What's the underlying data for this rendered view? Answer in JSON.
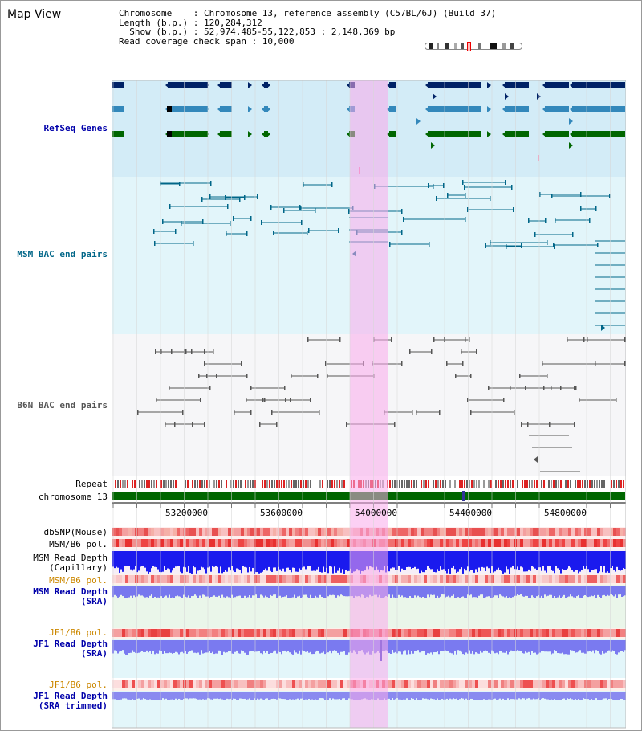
{
  "header": {
    "title": "Map View",
    "info_lines": [
      "Chromosome    : Chromosome 13, reference assembly (C57BL/6J) (Build 37)",
      "Length (b.p.) : 120,284,312",
      "  Show (b.p.) : 52,974,485-55,122,853 : 2,148,369 bp",
      "Read coverage check span : 10,000"
    ]
  },
  "tracks": {
    "refseq": {
      "label": "RefSeq Genes",
      "color": "#0000aa"
    },
    "msm_bac": {
      "label": "MSM BAC end pairs",
      "color": "#006688"
    },
    "b6n_bac": {
      "label": "B6N BAC end pairs",
      "color": "#555555"
    },
    "repeat": {
      "label": "Repeat",
      "color": "#000000"
    },
    "chromosome": {
      "label": "chromosome 13",
      "color": "#000000"
    },
    "dbsnp": {
      "label": "dbSNP(Mouse)",
      "color": "#000000"
    },
    "msm_b6_pol_1": {
      "label": "MSM/B6 pol.",
      "color": "#000000"
    },
    "msm_read_depth_cap": {
      "label1": "MSM Read Depth",
      "label2": "(Capillary)",
      "color": "#000000"
    },
    "msm_b6_pol_2": {
      "label": "MSM/B6 pol.",
      "color": "#cc8800"
    },
    "msm_read_depth_sra": {
      "label1": "MSM Read Depth",
      "label2": "(SRA)",
      "color": "#0000aa"
    },
    "jf1_b6_pol_1": {
      "label": "JF1/B6 pol.",
      "color": "#cc8800"
    },
    "jf1_read_depth_sra": {
      "label1": "JF1 Read Depth",
      "label2": "(SRA)",
      "color": "#0000aa"
    },
    "jf1_b6_pol_2": {
      "label": "JF1/B6 pol.",
      "color": "#cc8800"
    },
    "jf1_read_depth_trim": {
      "label1": "JF1 Read Depth",
      "label2": "(SRA trimmed)",
      "color": "#0000aa"
    }
  },
  "axis": {
    "ticks": [
      "53200000",
      "53600000",
      "54000000",
      "54400000",
      "54800000"
    ]
  },
  "colors": {
    "refseq_bg": "#d6eef8",
    "bac_bg": "#e3f6fa",
    "b6n_bg": "#f5f5f8",
    "highlight": "#f9b8ee",
    "gene_dark": "#002266",
    "gene_mid": "#3388bb",
    "gene_green": "#006600"
  }
}
